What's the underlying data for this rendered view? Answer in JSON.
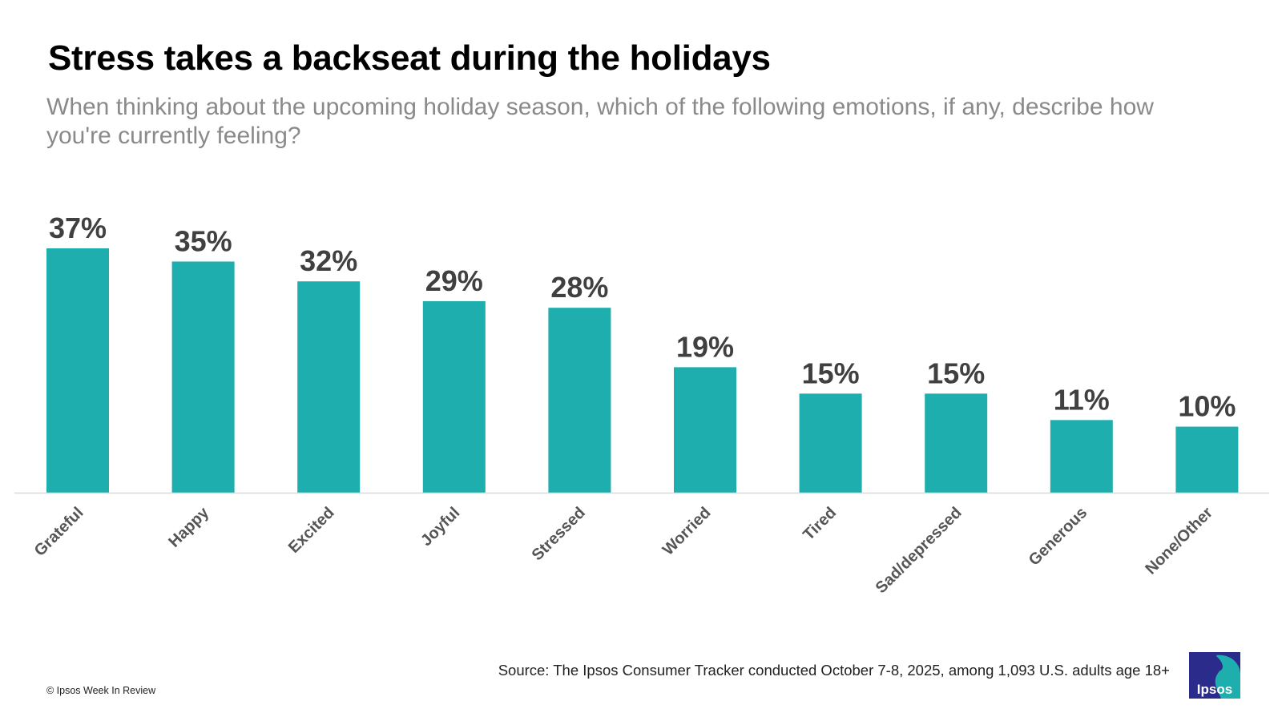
{
  "colors": {
    "bar": "#1eaead",
    "axis": "#d9d9d9",
    "value_label": "#404040",
    "category_label": "#555555",
    "logo_blue": "#2b2b8c",
    "logo_teal": "#1eaead"
  },
  "chart_data": {
    "type": "bar",
    "title": "Stress takes a backseat during the holidays",
    "subtitle": "When thinking about the upcoming holiday season, which of the following emotions, if any, describe how you're currently feeling?",
    "categories": [
      "Grateful",
      "Happy",
      "Excited",
      "Joyful",
      "Stressed",
      "Worried",
      "Tired",
      "Sad/depressed",
      "Generous",
      "None/Other"
    ],
    "values": [
      37,
      35,
      32,
      29,
      28,
      19,
      15,
      15,
      11,
      10
    ],
    "value_labels": [
      "37%",
      "35%",
      "32%",
      "29%",
      "28%",
      "19%",
      "15%",
      "15%",
      "11%",
      "10%"
    ],
    "xlabel": "",
    "ylabel": "",
    "ylim": [
      0,
      37
    ],
    "unit": "%"
  },
  "footer": {
    "source": "Source: The Ipsos Consumer Tracker conducted  October 7-8, 2025, among 1,093 U.S. adults age 18+",
    "copyright": "© Ipsos Week In Review",
    "logo_text": "Ipsos"
  }
}
